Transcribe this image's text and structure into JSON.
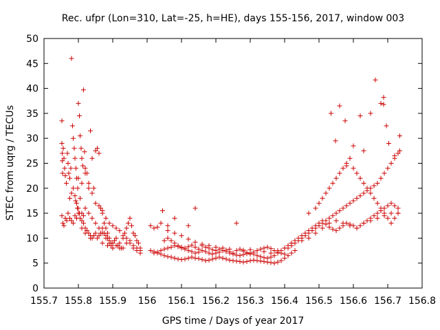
{
  "chart_data": {
    "type": "scatter",
    "title": "Rec. ufpr (Lon=310, Lat=-25, h=HE), days 155-156, 2017, window 003",
    "xlabel": "GPS time / Days of year 2017",
    "ylabel": "STEC from uqrg / TECUs",
    "xlim": [
      155.7,
      156.8
    ],
    "ylim": [
      0,
      50
    ],
    "xticks": [
      "155.7",
      "155.8",
      "155.9",
      "156",
      "156.1",
      "156.2",
      "156.3",
      "156.4",
      "156.5",
      "156.6",
      "156.7",
      "156.8"
    ],
    "xtick_values": [
      155.7,
      155.8,
      155.9,
      156.0,
      156.1,
      156.2,
      156.3,
      156.4,
      156.5,
      156.6,
      156.7,
      156.8
    ],
    "yticks": [
      "0",
      "5",
      "10",
      "15",
      "20",
      "25",
      "30",
      "35",
      "40",
      "45",
      "50"
    ],
    "ytick_values": [
      0,
      5,
      10,
      15,
      20,
      25,
      30,
      35,
      40,
      45,
      50
    ],
    "grid": false,
    "marker": "plus",
    "color": "#cc0000",
    "x": [
      155.752,
      155.752,
      155.753,
      155.753,
      155.754,
      155.756,
      155.758,
      155.76,
      155.762,
      155.765,
      155.768,
      155.77,
      155.772,
      155.775,
      155.778,
      155.78,
      155.783,
      155.785,
      155.788,
      155.79,
      155.793,
      155.795,
      155.798,
      155.8,
      155.803,
      155.805,
      155.808,
      155.81,
      155.813,
      155.815,
      155.818,
      155.82,
      155.825,
      155.83,
      155.835,
      155.84,
      155.845,
      155.85,
      155.855,
      155.86,
      155.865,
      155.87,
      155.875,
      155.88,
      155.885,
      155.89,
      155.895,
      155.9,
      155.752,
      155.755,
      155.758,
      155.762,
      155.766,
      155.77,
      155.775,
      155.78,
      155.785,
      155.79,
      155.795,
      155.8,
      155.805,
      155.81,
      155.815,
      155.82,
      155.825,
      155.83,
      155.835,
      155.84,
      155.845,
      155.85,
      155.855,
      155.86,
      155.865,
      155.87,
      155.875,
      155.88,
      155.885,
      155.89,
      155.895,
      155.9,
      155.905,
      155.91,
      155.915,
      155.92,
      155.925,
      155.93,
      155.935,
      155.94,
      155.945,
      155.95,
      155.955,
      155.96,
      155.965,
      155.97,
      155.975,
      155.98,
      155.775,
      155.78,
      155.785,
      155.79,
      155.795,
      155.8,
      155.805,
      155.81,
      155.815,
      155.82,
      155.83,
      155.84,
      155.85,
      155.86,
      155.87,
      155.88,
      155.89,
      155.9,
      155.91,
      155.92,
      155.93,
      155.94,
      155.95,
      155.96,
      155.97,
      155.98,
      155.8,
      155.81,
      155.82,
      155.83,
      155.84,
      155.85,
      155.86,
      155.87,
      155.88,
      155.89,
      155.9,
      155.91,
      155.92,
      155.93,
      155.94,
      155.95,
      155.96,
      155.97,
      155.98,
      155.792,
      155.797,
      155.803,
      155.81,
      155.81,
      155.82,
      155.835,
      155.87,
      155.885,
      155.9,
      156.01,
      156.02,
      156.03,
      156.04,
      156.05,
      156.06,
      156.07,
      156.08,
      156.09,
      156.1,
      156.11,
      156.12,
      156.13,
      156.14,
      156.15,
      156.16,
      156.17,
      156.18,
      156.19,
      156.2,
      156.21,
      156.22,
      156.23,
      156.24,
      156.25,
      156.26,
      156.27,
      156.28,
      156.29,
      156.3,
      156.31,
      156.32,
      156.33,
      156.34,
      156.35,
      156.36,
      156.37,
      156.38,
      156.39,
      156.4,
      156.41,
      156.42,
      156.43,
      156.02,
      156.03,
      156.04,
      156.05,
      156.06,
      156.07,
      156.08,
      156.09,
      156.1,
      156.11,
      156.12,
      156.13,
      156.14,
      156.15,
      156.16,
      156.17,
      156.18,
      156.19,
      156.2,
      156.21,
      156.22,
      156.23,
      156.24,
      156.25,
      156.26,
      156.27,
      156.28,
      156.29,
      156.3,
      156.31,
      156.32,
      156.33,
      156.34,
      156.35,
      156.36,
      156.37,
      156.38,
      156.39,
      156.4,
      156.41,
      156.42,
      156.05,
      156.06,
      156.07,
      156.08,
      156.09,
      156.1,
      156.11,
      156.12,
      156.13,
      156.14,
      156.15,
      156.16,
      156.17,
      156.18,
      156.19,
      156.2,
      156.21,
      156.22,
      156.23,
      156.24,
      156.25,
      156.26,
      156.27,
      156.28,
      156.29,
      156.3,
      156.31,
      156.32,
      156.33,
      156.34,
      156.35,
      156.36,
      156.37,
      156.38,
      156.39,
      156.4,
      156.06,
      156.08,
      156.1,
      156.12,
      156.14,
      156.16,
      156.18,
      156.2,
      156.22,
      156.24,
      156.26,
      156.28,
      156.3,
      156.32,
      156.34,
      156.36,
      156.38,
      156.4,
      156.01,
      156.02,
      156.03,
      156.04,
      156.045,
      156.06,
      156.08,
      156.12,
      156.14,
      156.26,
      156.41,
      156.42,
      156.43,
      156.44,
      156.45,
      156.46,
      156.47,
      156.48,
      156.49,
      156.5,
      156.51,
      156.52,
      156.53,
      156.54,
      156.55,
      156.56,
      156.57,
      156.58,
      156.59,
      156.6,
      156.61,
      156.62,
      156.63,
      156.64,
      156.65,
      156.66,
      156.67,
      156.68,
      156.69,
      156.7,
      156.71,
      156.72,
      156.73,
      156.735,
      156.42,
      156.43,
      156.44,
      156.45,
      156.46,
      156.47,
      156.48,
      156.49,
      156.5,
      156.51,
      156.52,
      156.53,
      156.54,
      156.55,
      156.56,
      156.57,
      156.58,
      156.59,
      156.6,
      156.61,
      156.62,
      156.63,
      156.64,
      156.65,
      156.66,
      156.67,
      156.68,
      156.69,
      156.7,
      156.71,
      156.72,
      156.73,
      156.45,
      156.47,
      156.49,
      156.51,
      156.53,
      156.55,
      156.57,
      156.59,
      156.61,
      156.63,
      156.65,
      156.67,
      156.69,
      156.71,
      156.73,
      156.47,
      156.49,
      156.5,
      156.51,
      156.52,
      156.53,
      156.54,
      156.55,
      156.56,
      156.57,
      156.58,
      156.59,
      156.6,
      156.61,
      156.62,
      156.63,
      156.64,
      156.65,
      156.66,
      156.67,
      156.68,
      156.69,
      156.7,
      156.71,
      156.72,
      156.73,
      156.535,
      156.548,
      156.56,
      156.576,
      156.62,
      156.63,
      156.664,
      156.68,
      156.688,
      156.688,
      156.696,
      156.703,
      156.72,
      156.735,
      156.65,
      156.58,
      156.6
    ],
    "y": [
      33.5,
      29,
      27,
      25.5,
      23,
      28,
      26,
      24,
      22.5,
      21,
      27,
      25,
      23,
      22,
      24,
      46,
      32.5,
      30,
      28,
      26,
      24,
      22,
      20,
      37,
      34.5,
      30.5,
      28,
      26,
      24.5,
      39.7,
      27.3,
      24,
      23,
      21,
      31.5,
      26,
      20,
      27.5,
      28,
      27,
      16,
      15,
      13,
      12,
      11,
      10,
      9,
      8,
      14.5,
      13,
      12.5,
      14,
      13.5,
      15,
      14,
      13.5,
      13,
      14.5,
      14,
      15,
      14,
      13.5,
      13,
      12,
      11.5,
      11,
      10.5,
      10,
      10.5,
      11,
      10,
      10.5,
      11,
      12,
      11,
      10.5,
      10,
      9,
      8.5,
      9,
      9.5,
      10,
      8.5,
      9,
      8,
      10,
      11,
      12,
      13,
      14,
      12.5,
      11,
      10.5,
      9.5,
      9,
      8,
      18,
      19,
      20,
      18.5,
      17,
      16,
      18,
      15,
      14.5,
      16,
      15,
      14,
      13,
      12,
      11,
      10,
      9.5,
      9,
      8.5,
      8,
      8,
      9,
      9.5,
      8,
      7.5,
      7,
      22,
      21,
      23,
      20,
      19,
      17,
      16.5,
      15.5,
      14,
      13,
      12.5,
      12,
      11.5,
      10.5,
      10,
      9,
      8.5,
      8,
      7.5,
      17.5,
      16,
      15,
      13.5,
      12,
      11,
      10,
      9,
      8.5,
      8,
      7.5,
      7.3,
      7,
      6.8,
      6.5,
      6.3,
      6.2,
      6,
      5.8,
      5.7,
      5.8,
      6,
      6.2,
      6,
      5.9,
      5.7,
      5.5,
      5.6,
      5.8,
      6,
      6.2,
      6,
      5.8,
      5.6,
      5.5,
      5.4,
      5.3,
      5.2,
      5.3,
      5.5,
      5.6,
      5.5,
      5.4,
      5.3,
      5.2,
      5.1,
      5,
      5.2,
      5.5,
      6,
      6.5,
      7,
      7.5,
      7,
      7.2,
      7.5,
      7.8,
      8,
      8.2,
      8.5,
      8.3,
      8,
      7.8,
      7.5,
      7.3,
      7,
      7.2,
      7.5,
      7.3,
      7,
      6.8,
      7,
      7.2,
      7.5,
      7.3,
      7,
      6.8,
      6.6,
      6.5,
      6.7,
      6.9,
      7,
      6.8,
      6.5,
      6.3,
      6.1,
      6,
      6.2,
      6.5,
      7,
      7.5,
      8,
      8.5,
      9,
      9.5,
      10,
      9.5,
      9,
      8.5,
      8.2,
      8,
      8.3,
      8.6,
      8.2,
      7.8,
      8.5,
      8.2,
      8,
      7.7,
      7.5,
      7.8,
      8,
      7.6,
      7.3,
      7,
      7.5,
      7.8,
      7.4,
      7.1,
      6.8,
      7.2,
      7.5,
      7.8,
      8,
      8.2,
      7.9,
      7.5,
      7.2,
      7,
      6.8,
      11.5,
      11,
      10.5,
      9.8,
      9.2,
      8.8,
      8.5,
      8.2,
      8,
      7.8,
      7.5,
      7.6,
      7.7,
      7.5,
      7.3,
      7,
      7.5,
      8,
      12.5,
      12,
      12.2,
      13,
      15.5,
      12.5,
      14,
      12.5,
      16,
      13,
      8,
      8.5,
      9,
      9.5,
      10,
      10.5,
      11,
      11.5,
      12,
      12.5,
      13,
      13.5,
      14,
      14.5,
      15,
      15.5,
      16,
      16.5,
      17,
      17.5,
      18,
      18.5,
      19,
      19.5,
      20,
      20.5,
      21,
      22,
      23,
      24,
      25,
      26,
      27,
      27.5,
      9,
      9.5,
      10,
      10.5,
      11,
      11.5,
      12,
      12.5,
      13,
      13.5,
      12.8,
      12.2,
      11.8,
      11.5,
      12,
      12.5,
      13,
      12.8,
      12.5,
      12,
      12.5,
      13,
      13.5,
      14,
      14.5,
      15,
      15.5,
      16,
      16.5,
      17,
      16.5,
      16,
      9.5,
      10,
      11,
      12,
      13,
      13.5,
      13,
      12.5,
      12,
      13,
      13.5,
      14,
      14.5,
      15,
      15,
      15,
      16,
      17,
      18,
      19,
      20,
      21,
      22,
      23,
      24,
      25,
      26,
      24,
      23,
      22,
      21,
      20,
      19,
      18,
      17,
      16,
      15,
      14,
      13,
      14,
      15,
      35,
      29.5,
      36.5,
      33.5,
      34.5,
      27.5,
      41.7,
      37,
      38.2,
      36.8,
      32.5,
      29,
      26.5,
      30.5,
      35,
      24.5,
      28.5
    ]
  }
}
